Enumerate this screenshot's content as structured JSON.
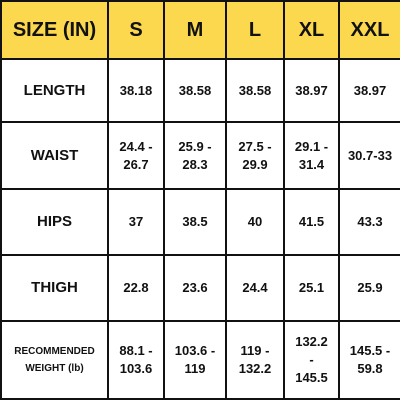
{
  "table": {
    "header": [
      "SIZE (IN)",
      "S",
      "M",
      "L",
      "XL",
      "XXL"
    ],
    "rows": [
      [
        "LENGTH",
        "38.18",
        "38.58",
        "38.58",
        "38.97",
        "38.97"
      ],
      [
        "WAIST",
        "24.4 -\n26.7",
        "25.9 -\n28.3",
        "27.5 -\n29.9",
        "29.1 -\n31.4",
        "30.7-33"
      ],
      [
        "HIPS",
        "37",
        "38.5",
        "40",
        "41.5",
        "43.3"
      ],
      [
        "THIGH",
        "22.8",
        "23.6",
        "24.4",
        "25.1",
        "25.9"
      ],
      [
        "RECOMMENDED\nWEIGHT (lb)",
        "88.1 -\n103.6",
        "103.6 -\n119",
        "119 -\n132.2",
        "132.2\n-\n145.5",
        "145.5 -\n59.8"
      ]
    ]
  }
}
